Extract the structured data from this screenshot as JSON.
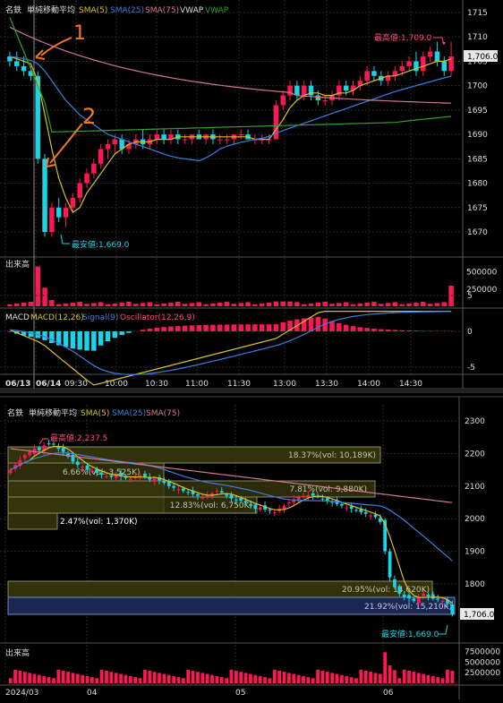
{
  "top_legend": {
    "name": "名鉄",
    "study": "単純移動平均",
    "sma5": "SMA(5)",
    "sma25": "SMA(25)",
    "sma75": "SMA(75)",
    "vwap1": "VWAP",
    "vwap2": "VWAP"
  },
  "bottom_legend": {
    "name": "名鉄",
    "study": "単純移動平均",
    "sma5": "SMA(5)",
    "sma25": "SMA(25)",
    "sma75": "SMA(75)"
  },
  "volume_label": "出来高",
  "macd_legend": {
    "macd": "MACD",
    "macd_line": "MACD(12,26)",
    "signal": "Signal(9)",
    "osc": "Oscillator(12,26,9)"
  },
  "colors": {
    "up": "#ff1654",
    "down": "#19d3e6",
    "sma5": "#d6c128",
    "sma25": "#3a7fe0",
    "sma75": "#d07890",
    "vwap": "#2fa02f",
    "annot": "#f07820"
  },
  "annotations": {
    "high_top": "最高値:1,709.0",
    "low_top": "最安値:1,669.0",
    "last_top": "1,706.0",
    "high_bottom": "最高値:2,237.5",
    "low_bottom": "最安値:1,669.0",
    "last_bottom": "1,706.0",
    "mark1": "1",
    "mark2": "2"
  },
  "chart_data": [
    {
      "type": "candlestick",
      "id": "intraday",
      "y_ticks": [
        1670,
        1675,
        1680,
        1685,
        1690,
        1695,
        1700,
        1705,
        1710,
        1715
      ],
      "ylim": [
        1666,
        1716
      ],
      "x_ticks": [
        "06/13",
        "06/14",
        "09:30",
        "10:00",
        "10:30",
        "11:00",
        "11:30",
        "13:00",
        "13:30",
        "14:00",
        "14:30"
      ],
      "candles": [
        [
          1706,
          1707,
          1704,
          1705
        ],
        [
          1705,
          1707,
          1703,
          1704
        ],
        [
          1704,
          1706,
          1702,
          1703
        ],
        [
          1703,
          1704,
          1701,
          1702
        ],
        [
          1702,
          1703,
          1684,
          1685
        ],
        [
          1685,
          1686,
          1669,
          1670
        ],
        [
          1670,
          1676,
          1669,
          1675
        ],
        [
          1675,
          1677,
          1672,
          1673
        ],
        [
          1673,
          1676,
          1671,
          1675
        ],
        [
          1675,
          1678,
          1674,
          1677
        ],
        [
          1677,
          1681,
          1676,
          1680
        ],
        [
          1680,
          1683,
          1679,
          1682
        ],
        [
          1682,
          1685,
          1681,
          1684
        ],
        [
          1684,
          1688,
          1683,
          1687
        ],
        [
          1687,
          1689,
          1685,
          1688
        ],
        [
          1688,
          1690,
          1686,
          1689
        ],
        [
          1689,
          1690,
          1686,
          1687
        ],
        [
          1687,
          1689,
          1686,
          1688
        ],
        [
          1688,
          1690,
          1687,
          1689
        ],
        [
          1689,
          1691,
          1687,
          1688
        ],
        [
          1688,
          1690,
          1687,
          1689
        ],
        [
          1689,
          1691,
          1688,
          1690
        ],
        [
          1690,
          1691,
          1688,
          1689
        ],
        [
          1689,
          1691,
          1688,
          1690
        ],
        [
          1690,
          1691,
          1688,
          1689
        ],
        [
          1689,
          1690,
          1688,
          1689
        ],
        [
          1689,
          1690,
          1688,
          1690
        ],
        [
          1690,
          1691,
          1689,
          1689
        ],
        [
          1689,
          1690,
          1688,
          1690
        ],
        [
          1690,
          1691,
          1688,
          1689
        ],
        [
          1689,
          1690,
          1688,
          1689
        ],
        [
          1689,
          1690,
          1688,
          1689
        ],
        [
          1689,
          1690,
          1688,
          1690
        ],
        [
          1690,
          1691,
          1689,
          1690
        ],
        [
          1690,
          1691,
          1689,
          1689
        ],
        [
          1689,
          1690,
          1688,
          1689
        ],
        [
          1689,
          1690,
          1688,
          1689
        ],
        [
          1689,
          1690,
          1688,
          1689
        ],
        [
          1689,
          1697,
          1689,
          1696
        ],
        [
          1696,
          1699,
          1695,
          1698
        ],
        [
          1698,
          1701,
          1697,
          1700
        ],
        [
          1700,
          1701,
          1697,
          1698
        ],
        [
          1698,
          1701,
          1697,
          1700
        ],
        [
          1700,
          1701,
          1697,
          1698
        ],
        [
          1698,
          1699,
          1696,
          1697
        ],
        [
          1697,
          1698,
          1696,
          1697
        ],
        [
          1697,
          1699,
          1696,
          1698
        ],
        [
          1698,
          1701,
          1697,
          1700
        ],
        [
          1700,
          1701,
          1698,
          1699
        ],
        [
          1699,
          1701,
          1698,
          1700
        ],
        [
          1700,
          1702,
          1699,
          1701
        ],
        [
          1701,
          1704,
          1700,
          1703
        ],
        [
          1703,
          1704,
          1701,
          1702
        ],
        [
          1702,
          1703,
          1700,
          1701
        ],
        [
          1701,
          1703,
          1700,
          1702
        ],
        [
          1702,
          1704,
          1701,
          1703
        ],
        [
          1703,
          1705,
          1702,
          1704
        ],
        [
          1704,
          1706,
          1703,
          1705
        ],
        [
          1705,
          1707,
          1702,
          1703
        ],
        [
          1703,
          1707,
          1702,
          1706
        ],
        [
          1706,
          1708,
          1705,
          1707
        ],
        [
          1707,
          1709,
          1704,
          1705
        ],
        [
          1705,
          1706,
          1702,
          1703
        ],
        [
          1703,
          1709,
          1702,
          1706
        ]
      ],
      "sma5": [
        1706,
        1705.5,
        1705,
        1704.5,
        1701,
        1694,
        1687,
        1681,
        1677,
        1674,
        1675,
        1678,
        1680,
        1682,
        1684,
        1686,
        1687,
        1688,
        1688.5,
        1688.5,
        1688.5,
        1689,
        1689,
        1689,
        1689.5,
        1689.5,
        1689.5,
        1689.5,
        1689.5,
        1689.5,
        1689.5,
        1689.5,
        1689.5,
        1689.5,
        1689.5,
        1689,
        1689,
        1689,
        1691,
        1693,
        1695.5,
        1697,
        1698,
        1698.5,
        1698.5,
        1698,
        1698,
        1698.5,
        1698.5,
        1699,
        1700,
        1700.5,
        1701,
        1701.5,
        1702,
        1702,
        1702.5,
        1703,
        1703.5,
        1704,
        1704.5,
        1705,
        1705,
        1705.5
      ],
      "sma25": [
        1706,
        1705.8,
        1705.5,
        1705.2,
        1704.5,
        1703,
        1701,
        1699,
        1697,
        1695.5,
        1694,
        1693,
        1692,
        1691,
        1690,
        1689.5,
        1689,
        1688.5,
        1688,
        1687.5,
        1687,
        1686.5,
        1686,
        1685.5,
        1685.2,
        1685,
        1684.8,
        1684.6,
        1685.2,
        1686,
        1687,
        1687.6,
        1688,
        1688.4,
        1688.7,
        1689,
        1689.2,
        1689.6,
        1690.2,
        1690.8,
        1691.3,
        1691.8,
        1692.3,
        1692.8,
        1693.3,
        1693.8,
        1694.3,
        1694.8,
        1695.3,
        1695.8,
        1696.3,
        1696.8,
        1697.3,
        1697.8,
        1698.3,
        1698.8,
        1699.2,
        1699.6,
        1700,
        1700.4,
        1700.8,
        1701.2,
        1701.6,
        1702
      ]
    },
    {
      "type": "bar",
      "id": "intraday-volume",
      "y_ticks": [
        250000,
        500000
      ],
      "ylim": [
        0,
        620000
      ]
    },
    {
      "type": "line",
      "id": "macd",
      "y_ticks": [
        -5,
        0,
        5
      ],
      "ylim": [
        -8,
        4
      ]
    },
    {
      "type": "candlestick",
      "id": "daily",
      "y_ticks": [
        1800,
        1900,
        2000,
        2100,
        2200,
        2300
      ],
      "ylim": [
        1660,
        2330
      ],
      "x_ticks": [
        "2024/03",
        "04",
        "05",
        "06"
      ],
      "boxes": [
        {
          "label": "18.37%(vol: 10,189K)"
        },
        {
          "label": "6.66%(vol: 3,525K)"
        },
        {
          "label": "7.81%(vol: 9,880K)"
        },
        {
          "label": "12.83%(vol: 6,750K)"
        },
        {
          "label": "2.47%(vol: 1,370K)"
        },
        {
          "label": "20.95%(vol: 14,620K)"
        },
        {
          "label": "21.92%(vol: 15,210K)"
        }
      ]
    },
    {
      "type": "bar",
      "id": "daily-volume",
      "y_ticks": [
        2500000,
        5000000,
        7500000
      ],
      "ylim": [
        0,
        8200000
      ]
    }
  ]
}
